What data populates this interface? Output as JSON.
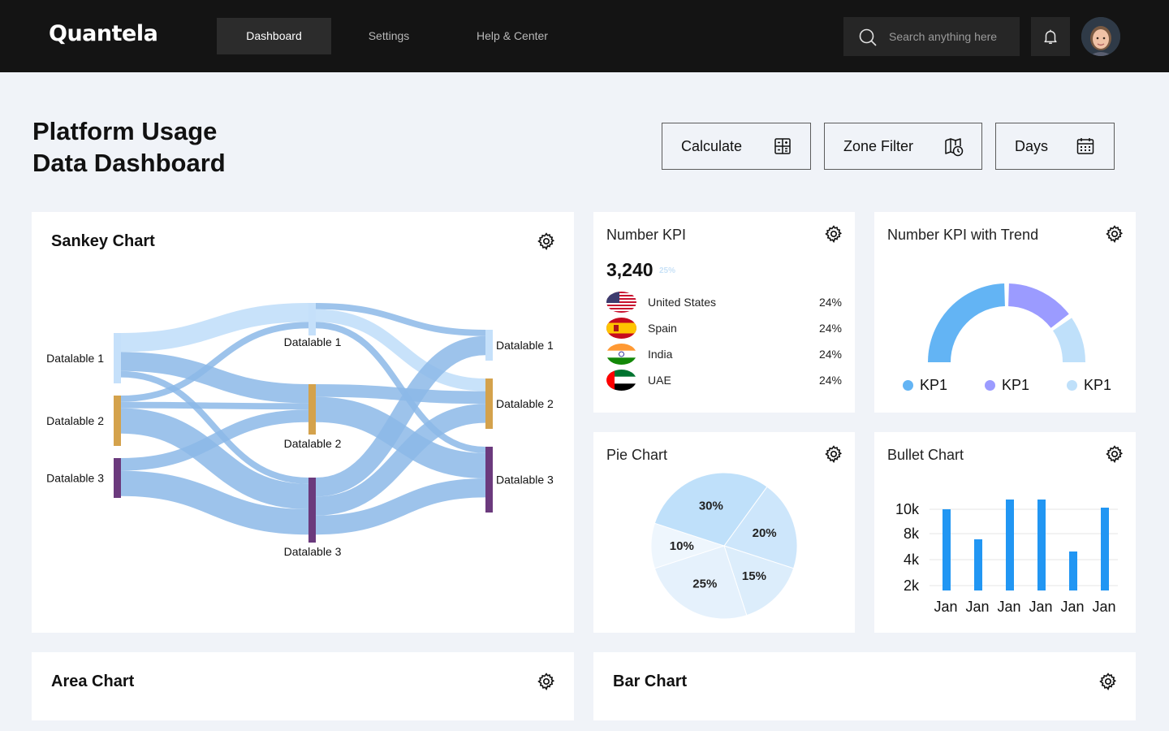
{
  "app": {
    "logo": "Quantela",
    "nav": [
      {
        "label": "Dashboard"
      },
      {
        "label": "Settings"
      },
      {
        "label": "Help & Center"
      }
    ],
    "search_placeholder": "Search anything here"
  },
  "page": {
    "title_line1": "Platform Usage",
    "title_line2": "Data Dashboard",
    "actions": {
      "calculate": "Calculate",
      "zone_filter": "Zone Filter",
      "days": "Days"
    }
  },
  "cards": {
    "sankey": {
      "title": "Sankey Chart"
    },
    "number_kpi": {
      "title": "Number KPI",
      "value": "3,240",
      "delta": "25%",
      "rows": [
        {
          "country": "United States",
          "pct": "24%",
          "flag": "us-flag-icon"
        },
        {
          "country": "Spain",
          "pct": "24%",
          "flag": "spain-flag-icon"
        },
        {
          "country": "India",
          "pct": "24%",
          "flag": "india-flag-icon"
        },
        {
          "country": "UAE",
          "pct": "24%",
          "flag": "uae-flag-icon"
        }
      ]
    },
    "kpi_trend": {
      "title": "Number KPI with Trend"
    },
    "pie": {
      "title": "Pie Chart"
    },
    "bullet": {
      "title": "Bullet Chart"
    },
    "area": {
      "title": "Area Chart"
    },
    "bar": {
      "title": "Bar Chart"
    }
  },
  "colors": {
    "accent_blue": "#63b4f4",
    "purple": "#9b9bff",
    "light_blue": "#bfe0fa",
    "bar_blue": "#2196f3",
    "sankey_link": "#8cb8e8",
    "sankey_link_light": "#c5e0fa",
    "node_tan": "#d4a24c",
    "node_purple": "#6b3a7d"
  },
  "chart_data": [
    {
      "type": "sankey",
      "nodes": [
        {
          "id": "L1",
          "label": "Datalable 1",
          "column": 0
        },
        {
          "id": "L2",
          "label": "Datalable 2",
          "column": 0
        },
        {
          "id": "L3",
          "label": "Datalable 3",
          "column": 0
        },
        {
          "id": "M1",
          "label": "Datalable 1",
          "column": 1
        },
        {
          "id": "M2",
          "label": "Datalable 2",
          "column": 1
        },
        {
          "id": "M3",
          "label": "Datalable 3",
          "column": 1
        },
        {
          "id": "R1",
          "label": "Datalable 1",
          "column": 2
        },
        {
          "id": "R2",
          "label": "Datalable 2",
          "column": 2
        },
        {
          "id": "R3",
          "label": "Datalable 3",
          "column": 2
        }
      ],
      "links": [
        {
          "source": "L1",
          "target": "M1",
          "value": 3,
          "color": "light"
        },
        {
          "source": "L1",
          "target": "M2",
          "value": 3
        },
        {
          "source": "L1",
          "target": "M3",
          "value": 1
        },
        {
          "source": "L2",
          "target": "M1",
          "value": 1
        },
        {
          "source": "L2",
          "target": "M2",
          "value": 1
        },
        {
          "source": "L2",
          "target": "M3",
          "value": 4
        },
        {
          "source": "L3",
          "target": "M2",
          "value": 2
        },
        {
          "source": "L3",
          "target": "M3",
          "value": 4
        },
        {
          "source": "M1",
          "target": "R1",
          "value": 1
        },
        {
          "source": "M1",
          "target": "R2",
          "value": 2,
          "color": "light"
        },
        {
          "source": "M1",
          "target": "R3",
          "value": 1
        },
        {
          "source": "M2",
          "target": "R2",
          "value": 2
        },
        {
          "source": "M2",
          "target": "R3",
          "value": 4
        },
        {
          "source": "M3",
          "target": "R1",
          "value": 3
        },
        {
          "source": "M3",
          "target": "R2",
          "value": 3
        },
        {
          "source": "M3",
          "target": "R3",
          "value": 3
        }
      ]
    },
    {
      "type": "pie",
      "subtype": "half-donut",
      "legend": [
        "KP1",
        "KP1",
        "KP1"
      ],
      "values": [
        50,
        30,
        20
      ],
      "colors": [
        "#63b4f4",
        "#9b9bff",
        "#bfe0fa"
      ]
    },
    {
      "type": "pie",
      "labels": [
        "20%",
        "15%",
        "25%",
        "10%",
        "30%"
      ],
      "values": [
        20,
        15,
        25,
        10,
        30
      ],
      "colors": [
        "#cde6fb",
        "#dcedfb",
        "#e5f1fc",
        "#eef6fd",
        "#bfe0fa"
      ]
    },
    {
      "type": "bar",
      "categories": [
        "Jan",
        "Jan",
        "Jan",
        "Jan",
        "Jan",
        "Jan"
      ],
      "values": [
        10,
        6.3,
        11.2,
        11.2,
        4.8,
        10.2
      ],
      "yticks": [
        "10k",
        "8k",
        "4k",
        "2k"
      ],
      "color": "#2196f3"
    }
  ]
}
